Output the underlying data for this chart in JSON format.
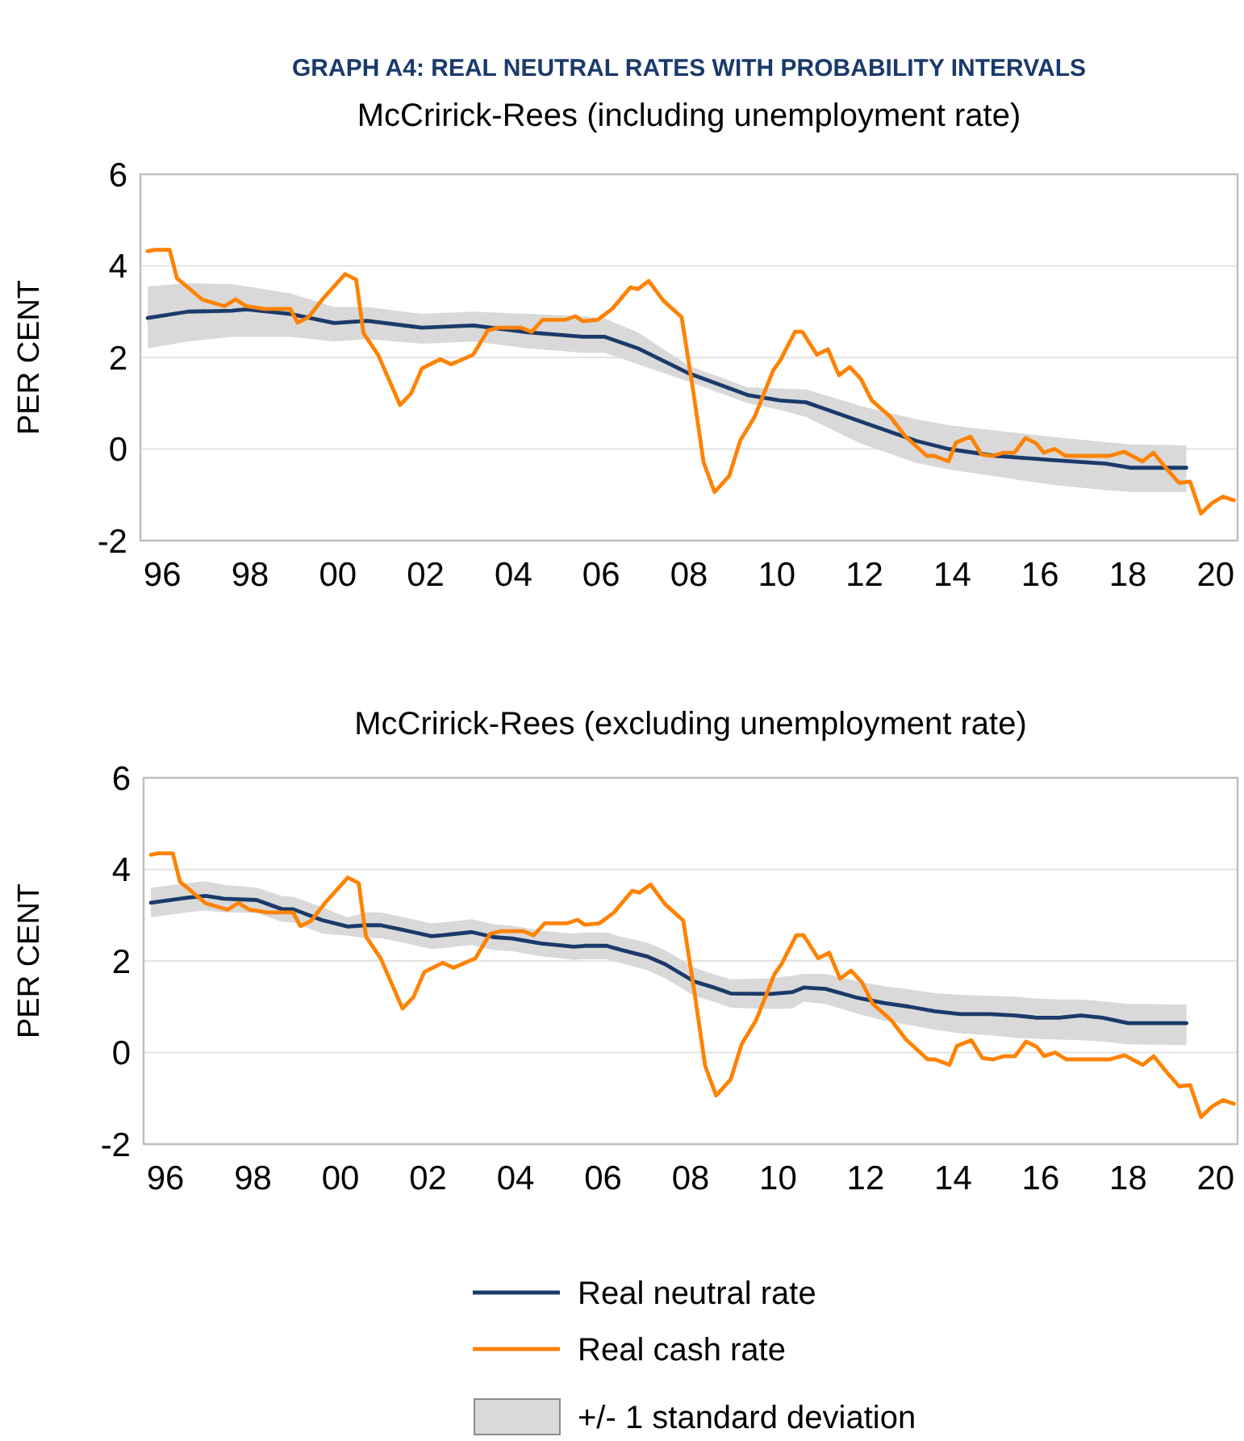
{
  "chart_data": [
    {
      "type": "line",
      "title": "GRAPH A4: REAL NEUTRAL RATES WITH PROBABILITY INTERVALS",
      "subtitle": "McCririck-Rees (including unemployment rate)",
      "ylabel": "PER CENT",
      "xlim": [
        "1996-01",
        "2021-01"
      ],
      "xticks": [
        {
          "value": "1996-07",
          "label": "96"
        },
        {
          "value": "1998-07",
          "label": "98"
        },
        {
          "value": "2000-07",
          "label": "00"
        },
        {
          "value": "2002-07",
          "label": "02"
        },
        {
          "value": "2004-07",
          "label": "04"
        },
        {
          "value": "2006-07",
          "label": "06"
        },
        {
          "value": "2008-07",
          "label": "08"
        },
        {
          "value": "2010-07",
          "label": "10"
        },
        {
          "value": "2012-07",
          "label": "12"
        },
        {
          "value": "2014-07",
          "label": "14"
        },
        {
          "value": "2016-07",
          "label": "16"
        },
        {
          "value": "2018-07",
          "label": "18"
        },
        {
          "value": "2020-07",
          "label": "20"
        }
      ],
      "ylim": [
        -2,
        6
      ],
      "yticks": [
        -2,
        0,
        2,
        4,
        6
      ],
      "grid": "y",
      "legend": false,
      "series": [
        {
          "color": "#1b3a6b",
          "x": [
            "1996-03",
            "1997-02",
            "1998-02",
            "1998-06",
            "1999-06",
            "2000-06",
            "2001-03",
            "2002-06",
            "2003-08",
            "2004-11",
            "2006-02",
            "2006-08",
            "2007-05",
            "2008-07",
            "2009-11",
            "2010-08",
            "2011-03",
            "2012-06",
            "2013-09",
            "2014-06",
            "2015-07",
            "2016-10",
            "2018-01",
            "2018-08",
            "2019-11"
          ],
          "values": [
            2.86,
            3.0,
            3.02,
            3.05,
            2.95,
            2.75,
            2.8,
            2.65,
            2.7,
            2.55,
            2.45,
            2.45,
            2.2,
            1.65,
            1.18,
            1.06,
            1.02,
            0.6,
            0.18,
            0.0,
            -0.15,
            -0.24,
            -0.32,
            -0.41,
            -0.41
          ],
          "upper": [
            3.55,
            3.62,
            3.6,
            3.55,
            3.4,
            3.1,
            3.1,
            2.95,
            3.0,
            2.95,
            2.9,
            2.85,
            2.55,
            1.82,
            1.35,
            1.32,
            1.3,
            0.94,
            0.65,
            0.52,
            0.4,
            0.27,
            0.15,
            0.1,
            0.08
          ],
          "lower": [
            2.2,
            2.35,
            2.45,
            2.45,
            2.45,
            2.35,
            2.4,
            2.3,
            2.35,
            2.2,
            2.1,
            2.1,
            1.85,
            1.47,
            1.0,
            0.85,
            0.7,
            0.12,
            -0.3,
            -0.45,
            -0.6,
            -0.78,
            -0.9,
            -0.94,
            -0.94
          ]
        },
        {
          "color": "#ff8200",
          "x": [
            "1996-03",
            "1996-05",
            "1996-09",
            "1996-11",
            "1997-06",
            "1997-12",
            "1998-03",
            "1998-06",
            "1998-11",
            "1999-06",
            "1999-08",
            "1999-11",
            "2000-03",
            "2000-09",
            "2000-12",
            "2001-02",
            "2001-06",
            "2001-12",
            "2002-03",
            "2002-06",
            "2002-11",
            "2003-02",
            "2003-08",
            "2003-12",
            "2004-03",
            "2004-09",
            "2004-12",
            "2005-03",
            "2005-09",
            "2005-12",
            "2006-02",
            "2006-06",
            "2006-10",
            "2007-03",
            "2007-05",
            "2007-08",
            "2007-12",
            "2008-05",
            "2008-08",
            "2008-11",
            "2009-02",
            "2009-06",
            "2009-09",
            "2010-01",
            "2010-06",
            "2010-08",
            "2010-12",
            "2011-02",
            "2011-06",
            "2011-09",
            "2011-12",
            "2012-03",
            "2012-06",
            "2012-09",
            "2013-02",
            "2013-06",
            "2013-12",
            "2014-02",
            "2014-06",
            "2014-08",
            "2014-12",
            "2015-03",
            "2015-06",
            "2015-09",
            "2015-12",
            "2016-03",
            "2016-06",
            "2016-08",
            "2016-11",
            "2017-02",
            "2018-02",
            "2018-06",
            "2018-11",
            "2019-02",
            "2019-06",
            "2019-09",
            "2019-12",
            "2020-03",
            "2020-06",
            "2020-09",
            "2020-12"
          ],
          "values": [
            4.32,
            4.35,
            4.35,
            3.73,
            3.26,
            3.12,
            3.27,
            3.12,
            3.06,
            3.06,
            2.76,
            2.88,
            3.29,
            3.82,
            3.7,
            2.53,
            2.06,
            0.96,
            1.21,
            1.76,
            1.96,
            1.85,
            2.06,
            2.59,
            2.65,
            2.65,
            2.56,
            2.82,
            2.82,
            2.9,
            2.79,
            2.82,
            3.06,
            3.53,
            3.49,
            3.67,
            3.24,
            2.88,
            1.35,
            -0.29,
            -0.94,
            -0.59,
            0.18,
            0.71,
            1.71,
            1.94,
            2.56,
            2.56,
            2.06,
            2.18,
            1.61,
            1.79,
            1.53,
            1.06,
            0.71,
            0.29,
            -0.15,
            -0.15,
            -0.27,
            0.14,
            0.27,
            -0.12,
            -0.15,
            -0.08,
            -0.08,
            0.24,
            0.12,
            -0.08,
            0.0,
            -0.15,
            -0.15,
            -0.06,
            -0.27,
            -0.08,
            -0.47,
            -0.74,
            -0.71,
            -1.41,
            -1.18,
            -1.04,
            -1.12
          ]
        }
      ]
    },
    {
      "type": "line",
      "title": "McCririck-Rees (excluding unemployment rate)",
      "ylabel": "PER CENT",
      "xlim": [
        "1996-01",
        "2021-01"
      ],
      "xticks": [
        {
          "value": "1996-07",
          "label": "96"
        },
        {
          "value": "1998-07",
          "label": "98"
        },
        {
          "value": "2000-07",
          "label": "00"
        },
        {
          "value": "2002-07",
          "label": "02"
        },
        {
          "value": "2004-07",
          "label": "04"
        },
        {
          "value": "2006-07",
          "label": "06"
        },
        {
          "value": "2008-07",
          "label": "08"
        },
        {
          "value": "2010-07",
          "label": "10"
        },
        {
          "value": "2012-07",
          "label": "12"
        },
        {
          "value": "2014-07",
          "label": "14"
        },
        {
          "value": "2016-07",
          "label": "16"
        },
        {
          "value": "2018-07",
          "label": "18"
        },
        {
          "value": "2020-07",
          "label": "20"
        }
      ],
      "ylim": [
        -2,
        6
      ],
      "yticks": [
        -2,
        0,
        2,
        4,
        6
      ],
      "grid": "y",
      "legend": "bottom",
      "annotations": [
        "+/- 1 standard deviation"
      ],
      "series": [
        {
          "name": "Real neutral rate",
          "color": "#1b3a6b",
          "x": [
            "1996-03",
            "1997-01",
            "1997-06",
            "1997-11",
            "1998-08",
            "1999-03",
            "1999-06",
            "2000-02",
            "2000-09",
            "2001-02",
            "2001-06",
            "2001-12",
            "2002-08",
            "2002-11",
            "2003-07",
            "2004-01",
            "2004-06",
            "2005-02",
            "2005-06",
            "2005-11",
            "2006-02",
            "2006-08",
            "2006-12",
            "2007-07",
            "2007-12",
            "2008-08",
            "2009-01",
            "2009-06",
            "2010-05",
            "2010-11",
            "2011-02",
            "2011-08",
            "2012-05",
            "2012-12",
            "2013-07",
            "2014-02",
            "2014-09",
            "2015-05",
            "2015-12",
            "2016-06",
            "2016-12",
            "2017-06",
            "2017-12",
            "2018-07",
            "2019-11"
          ],
          "values": [
            3.27,
            3.38,
            3.42,
            3.36,
            3.33,
            3.13,
            3.13,
            2.89,
            2.75,
            2.78,
            2.78,
            2.68,
            2.54,
            2.56,
            2.63,
            2.52,
            2.49,
            2.38,
            2.35,
            2.31,
            2.33,
            2.33,
            2.24,
            2.1,
            1.93,
            1.55,
            1.43,
            1.29,
            1.28,
            1.32,
            1.42,
            1.39,
            1.19,
            1.08,
            1.0,
            0.9,
            0.84,
            0.84,
            0.81,
            0.76,
            0.76,
            0.81,
            0.76,
            0.64,
            0.64
          ],
          "upper": [
            3.6,
            3.7,
            3.74,
            3.66,
            3.6,
            3.42,
            3.4,
            3.17,
            2.95,
            3.06,
            3.06,
            2.96,
            2.82,
            2.84,
            2.91,
            2.8,
            2.77,
            2.66,
            2.63,
            2.6,
            2.62,
            2.62,
            2.53,
            2.4,
            2.24,
            1.86,
            1.72,
            1.6,
            1.62,
            1.68,
            1.72,
            1.72,
            1.55,
            1.45,
            1.38,
            1.3,
            1.26,
            1.24,
            1.22,
            1.18,
            1.16,
            1.16,
            1.12,
            1.06,
            1.05
          ],
          "lower": [
            2.95,
            3.06,
            3.1,
            3.06,
            3.05,
            2.85,
            2.84,
            2.6,
            2.55,
            2.5,
            2.5,
            2.4,
            2.26,
            2.28,
            2.35,
            2.24,
            2.21,
            2.1,
            2.07,
            2.02,
            2.04,
            2.04,
            1.95,
            1.8,
            1.62,
            1.24,
            1.12,
            0.98,
            0.95,
            0.96,
            1.11,
            1.06,
            0.84,
            0.7,
            0.6,
            0.5,
            0.42,
            0.38,
            0.32,
            0.3,
            0.28,
            0.27,
            0.24,
            0.18,
            0.16
          ]
        },
        {
          "name": "Real cash rate",
          "color": "#ff8200",
          "x": [
            "1996-03",
            "1996-05",
            "1996-09",
            "1996-11",
            "1997-06",
            "1997-12",
            "1998-03",
            "1998-06",
            "1998-11",
            "1999-06",
            "1999-08",
            "1999-11",
            "2000-03",
            "2000-09",
            "2000-12",
            "2001-02",
            "2001-06",
            "2001-12",
            "2002-03",
            "2002-06",
            "2002-11",
            "2003-02",
            "2003-08",
            "2003-12",
            "2004-03",
            "2004-09",
            "2004-12",
            "2005-03",
            "2005-09",
            "2005-12",
            "2006-02",
            "2006-06",
            "2006-10",
            "2007-03",
            "2007-05",
            "2007-08",
            "2007-12",
            "2008-05",
            "2008-08",
            "2008-11",
            "2009-02",
            "2009-06",
            "2009-09",
            "2010-01",
            "2010-06",
            "2010-08",
            "2010-12",
            "2011-02",
            "2011-06",
            "2011-09",
            "2011-12",
            "2012-03",
            "2012-06",
            "2012-09",
            "2013-02",
            "2013-06",
            "2013-12",
            "2014-02",
            "2014-06",
            "2014-08",
            "2014-12",
            "2015-03",
            "2015-06",
            "2015-09",
            "2015-12",
            "2016-03",
            "2016-06",
            "2016-08",
            "2016-11",
            "2017-02",
            "2018-02",
            "2018-06",
            "2018-11",
            "2019-02",
            "2019-06",
            "2019-09",
            "2019-12",
            "2020-03",
            "2020-06",
            "2020-09",
            "2020-12"
          ],
          "values": [
            4.32,
            4.35,
            4.35,
            3.73,
            3.26,
            3.12,
            3.27,
            3.12,
            3.06,
            3.06,
            2.76,
            2.88,
            3.29,
            3.82,
            3.7,
            2.53,
            2.06,
            0.96,
            1.21,
            1.76,
            1.96,
            1.85,
            2.06,
            2.59,
            2.65,
            2.65,
            2.56,
            2.82,
            2.82,
            2.9,
            2.79,
            2.82,
            3.06,
            3.53,
            3.49,
            3.67,
            3.24,
            2.88,
            1.35,
            -0.29,
            -0.94,
            -0.59,
            0.18,
            0.71,
            1.71,
            1.94,
            2.56,
            2.56,
            2.06,
            2.18,
            1.61,
            1.79,
            1.53,
            1.06,
            0.71,
            0.29,
            -0.15,
            -0.15,
            -0.27,
            0.14,
            0.27,
            -0.12,
            -0.15,
            -0.08,
            -0.08,
            0.24,
            0.12,
            -0.08,
            0.0,
            -0.15,
            -0.15,
            -0.06,
            -0.27,
            -0.08,
            -0.47,
            -0.74,
            -0.71,
            -1.41,
            -1.18,
            -1.04,
            -1.12
          ]
        }
      ]
    }
  ]
}
